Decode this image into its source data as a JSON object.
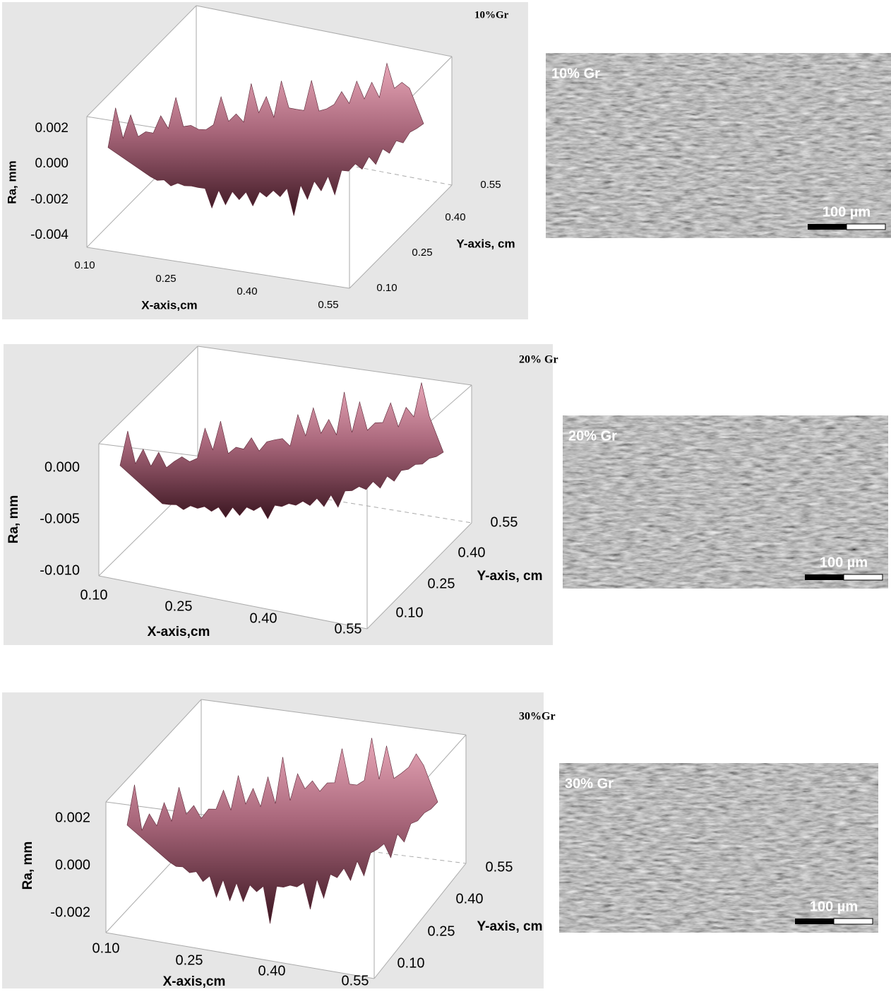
{
  "panels": [
    {
      "title": "10%Gr",
      "z_label": "Ra, mm",
      "x_label": "X-axis,cm",
      "y_label": "Y-axis, cm",
      "z_ticks": [
        "0.002",
        "0.000",
        "-0.002",
        "-0.004"
      ],
      "x_ticks": [
        "0.10",
        "0.25",
        "0.40",
        "0.55"
      ],
      "y_ticks": [
        "0.10",
        "0.25",
        "0.40",
        "0.55"
      ],
      "image": {
        "label": "10% Gr",
        "scale": "100 µm"
      }
    },
    {
      "title": "20% Gr",
      "z_label": "Ra, mm",
      "x_label": "X-axis,cm",
      "y_label": "Y-axis, cm",
      "z_ticks": [
        "0.000",
        "-0.005",
        "-0.010"
      ],
      "x_ticks": [
        "0.10",
        "0.25",
        "0.40",
        "0.55"
      ],
      "y_ticks": [
        "0.10",
        "0.25",
        "0.40",
        "0.55"
      ],
      "image": {
        "label": "20% Gr",
        "scale": "100 µm"
      }
    },
    {
      "title": "30%Gr",
      "z_label": "Ra, mm",
      "x_label": "X-axis,cm",
      "y_label": "Y-axis, cm",
      "z_ticks": [
        "0.002",
        "0.000",
        "-0.002"
      ],
      "x_ticks": [
        "0.10",
        "0.25",
        "0.40",
        "0.55"
      ],
      "y_ticks": [
        "0.10",
        "0.25",
        "0.40",
        "0.55"
      ],
      "image": {
        "label": "30% Gr",
        "scale": "100 µm"
      }
    }
  ]
}
